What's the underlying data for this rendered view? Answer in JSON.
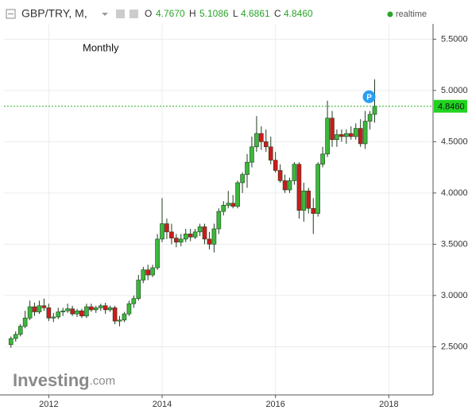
{
  "chart_data": {
    "type": "candlestick",
    "header": {
      "symbol": "GBP/TRY, M,",
      "o": "O",
      "h": "H",
      "l": "L",
      "c": "C",
      "quotes": [
        "4.7670",
        "5.1086",
        "4.6861",
        "4.8460"
      ],
      "status": "realtime"
    },
    "subtitle": "Monthly",
    "brand": {
      "name": "Investing",
      "suffix": ".com"
    },
    "marker": "P",
    "last_price": {
      "value": 4.846,
      "label": "4.8460"
    },
    "up_color": "#3cb83c",
    "down_color": "#d01a1a",
    "outline": "#1f3d1f",
    "grid": true,
    "xlim": [
      2011.21,
      2018.78
    ],
    "xticks": [
      2012,
      2014,
      2016,
      2018
    ],
    "ylim": [
      2.03,
      5.65
    ],
    "yticks": [
      {
        "value": 2.5,
        "label": "2.5000"
      },
      {
        "value": 3,
        "label": "3.0000"
      },
      {
        "value": 3.5,
        "label": "3.5000"
      },
      {
        "value": 4,
        "label": "4.0000"
      },
      {
        "value": 4.5,
        "label": "4.5000"
      },
      {
        "value": 5,
        "label": "5.0000"
      },
      {
        "value": 5.5,
        "label": "5.5000"
      }
    ],
    "x": [
      2011.333,
      2011.417,
      2011.5,
      2011.583,
      2011.667,
      2011.75,
      2011.833,
      2011.917,
      2012,
      2012.083,
      2012.167,
      2012.25,
      2012.333,
      2012.417,
      2012.5,
      2012.583,
      2012.667,
      2012.75,
      2012.833,
      2012.917,
      2013,
      2013.083,
      2013.167,
      2013.25,
      2013.333,
      2013.417,
      2013.5,
      2013.583,
      2013.667,
      2013.75,
      2013.833,
      2013.917,
      2014,
      2014.083,
      2014.167,
      2014.25,
      2014.333,
      2014.417,
      2014.5,
      2014.583,
      2014.667,
      2014.75,
      2014.833,
      2014.917,
      2015,
      2015.083,
      2015.167,
      2015.25,
      2015.333,
      2015.417,
      2015.5,
      2015.583,
      2015.667,
      2015.75,
      2015.833,
      2015.917,
      2016,
      2016.083,
      2016.167,
      2016.25,
      2016.333,
      2016.417,
      2016.5,
      2016.583,
      2016.667,
      2016.75,
      2016.833,
      2016.917,
      2017,
      2017.083,
      2017.167,
      2017.25,
      2017.333,
      2017.417,
      2017.5,
      2017.583,
      2017.667,
      2017.75
    ],
    "open": [
      2.52,
      2.58,
      2.62,
      2.7,
      2.78,
      2.89,
      2.84,
      2.9,
      2.88,
      2.78,
      2.79,
      2.84,
      2.85,
      2.87,
      2.82,
      2.85,
      2.8,
      2.89,
      2.86,
      2.88,
      2.9,
      2.86,
      2.88,
      2.75,
      2.76,
      2.82,
      2.92,
      2.97,
      3.15,
      3.25,
      3.2,
      3.27,
      3.55,
      3.7,
      3.62,
      3.56,
      3.52,
      3.55,
      3.6,
      3.57,
      3.62,
      3.67,
      3.55,
      3.5,
      3.65,
      3.82,
      3.88,
      3.9,
      3.87,
      4.1,
      4.18,
      4.3,
      4.45,
      4.58,
      4.5,
      4.45,
      4.32,
      4.22,
      4.12,
      4.03,
      4.12,
      4.28,
      3.83,
      4.02,
      3.85,
      3.8,
      4.28,
      4.38,
      4.73,
      4.52,
      4.57,
      4.55,
      4.58,
      4.55,
      4.63,
      4.48,
      4.7,
      4.767
    ],
    "high": [
      2.6,
      2.65,
      2.72,
      2.85,
      2.95,
      2.93,
      2.95,
      2.97,
      2.92,
      2.83,
      2.88,
      2.88,
      2.92,
      2.9,
      2.87,
      2.87,
      2.92,
      2.92,
      2.9,
      2.92,
      2.93,
      2.9,
      2.9,
      2.8,
      2.84,
      2.95,
      3.0,
      3.2,
      3.28,
      3.3,
      3.3,
      3.6,
      3.95,
      3.75,
      3.7,
      3.6,
      3.6,
      3.65,
      3.65,
      3.65,
      3.7,
      3.7,
      3.62,
      3.7,
      3.85,
      3.92,
      4.02,
      3.98,
      4.12,
      4.2,
      4.38,
      4.55,
      4.75,
      4.65,
      4.62,
      4.55,
      4.4,
      4.28,
      4.18,
      4.15,
      4.3,
      4.3,
      4.1,
      4.05,
      3.95,
      4.3,
      4.45,
      4.9,
      4.8,
      4.62,
      4.62,
      4.62,
      4.65,
      4.68,
      4.72,
      4.8,
      4.8,
      5.1086
    ],
    "low": [
      2.49,
      2.55,
      2.6,
      2.68,
      2.76,
      2.8,
      2.82,
      2.85,
      2.75,
      2.74,
      2.77,
      2.8,
      2.83,
      2.8,
      2.79,
      2.78,
      2.78,
      2.84,
      2.83,
      2.85,
      2.82,
      2.84,
      2.72,
      2.7,
      2.74,
      2.8,
      2.88,
      2.95,
      3.12,
      3.15,
      3.18,
      3.25,
      3.52,
      3.55,
      3.5,
      3.47,
      3.48,
      3.52,
      3.53,
      3.55,
      3.58,
      3.5,
      3.45,
      3.42,
      3.6,
      3.78,
      3.85,
      3.85,
      3.85,
      4.0,
      4.05,
      4.25,
      4.4,
      4.42,
      4.4,
      4.28,
      4.2,
      4.1,
      4.0,
      4.0,
      4.08,
      3.75,
      3.72,
      3.8,
      3.6,
      3.77,
      4.25,
      4.35,
      4.45,
      4.45,
      4.5,
      4.48,
      4.52,
      4.52,
      4.45,
      4.43,
      4.62,
      4.6861
    ],
    "close": [
      2.58,
      2.62,
      2.7,
      2.78,
      2.89,
      2.84,
      2.9,
      2.88,
      2.78,
      2.79,
      2.84,
      2.85,
      2.87,
      2.82,
      2.85,
      2.8,
      2.89,
      2.86,
      2.88,
      2.9,
      2.86,
      2.88,
      2.75,
      2.76,
      2.82,
      2.92,
      2.97,
      3.15,
      3.25,
      3.2,
      3.27,
      3.55,
      3.7,
      3.62,
      3.56,
      3.52,
      3.55,
      3.6,
      3.57,
      3.62,
      3.67,
      3.55,
      3.5,
      3.65,
      3.82,
      3.88,
      3.9,
      3.87,
      4.1,
      4.18,
      4.3,
      4.45,
      4.58,
      4.5,
      4.45,
      4.32,
      4.22,
      4.12,
      4.03,
      4.12,
      4.28,
      3.83,
      4.02,
      3.85,
      3.8,
      4.28,
      4.38,
      4.73,
      4.52,
      4.57,
      4.55,
      4.58,
      4.55,
      4.63,
      4.48,
      4.7,
      4.767,
      4.846
    ]
  }
}
